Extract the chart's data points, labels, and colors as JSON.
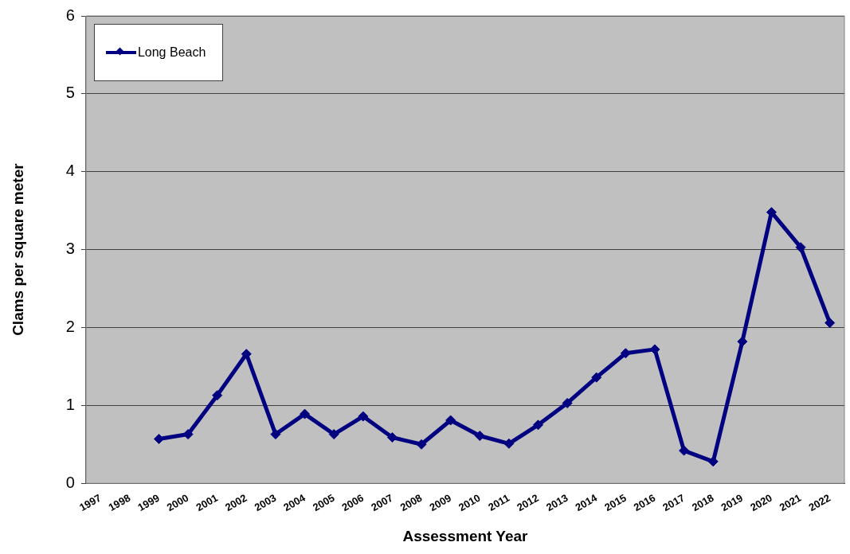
{
  "chart_data": {
    "type": "line",
    "xlabel": "Assessment Year",
    "ylabel": "Clams per square meter",
    "categories": [
      "1997",
      "1998",
      "1999",
      "2000",
      "2001",
      "2002",
      "2003",
      "2004",
      "2005",
      "2006",
      "2007",
      "2008",
      "2009",
      "2010",
      "2011",
      "2012",
      "2013",
      "2014",
      "2015",
      "2016",
      "2017",
      "2018",
      "2019",
      "2020",
      "2021",
      "2022"
    ],
    "series": [
      {
        "name": "Long Beach",
        "color": "#000080",
        "values": [
          null,
          null,
          0.57,
          0.63,
          1.13,
          1.66,
          0.63,
          0.89,
          0.63,
          0.86,
          0.59,
          0.5,
          0.81,
          0.61,
          0.51,
          0.75,
          1.03,
          1.36,
          1.67,
          1.72,
          0.42,
          0.28,
          1.82,
          3.48,
          3.03,
          2.06
        ]
      }
    ],
    "ylim": [
      0,
      6
    ],
    "yticks": [
      0,
      1,
      2,
      3,
      4,
      5,
      6
    ],
    "grid": "y",
    "legend": "top left",
    "marker": "diamond",
    "line_style": "solid"
  }
}
